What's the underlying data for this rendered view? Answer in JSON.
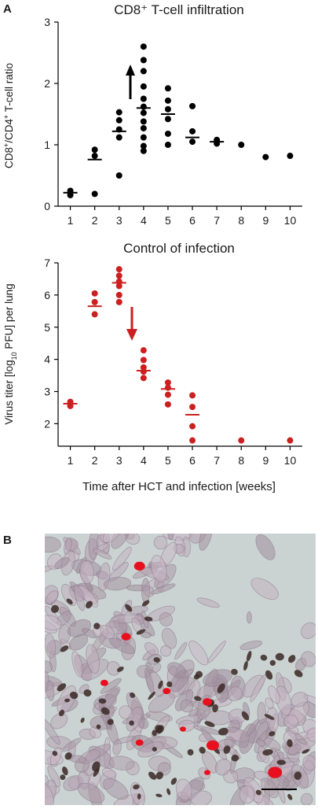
{
  "panel_a_letter": "A",
  "panel_b_letter": "B",
  "chart_data": [
    {
      "type": "scatter",
      "title": "CD8⁺ T-cell infiltration",
      "ylabel_parts": [
        "CD8",
        "+",
        "/CD4",
        "+",
        " T-cell ratio"
      ],
      "xlabel": "",
      "x_ticks": [
        1,
        2,
        3,
        4,
        5,
        6,
        7,
        8,
        9,
        10
      ],
      "y_ticks": [
        0,
        1,
        2,
        3
      ],
      "xlim": [
        0.5,
        10.5
      ],
      "ylim": [
        0,
        3
      ],
      "color": "#000000",
      "annotation": "arrow up at week 4",
      "points": [
        {
          "x": 1,
          "y": 0.25
        },
        {
          "x": 1,
          "y": 0.18
        },
        {
          "x": 2,
          "y": 0.92
        },
        {
          "x": 2,
          "y": 0.82
        },
        {
          "x": 2,
          "y": 0.2
        },
        {
          "x": 3,
          "y": 1.53
        },
        {
          "x": 3,
          "y": 1.4
        },
        {
          "x": 3,
          "y": 1.25
        },
        {
          "x": 3,
          "y": 1.12
        },
        {
          "x": 3,
          "y": 0.5
        },
        {
          "x": 4,
          "y": 2.6
        },
        {
          "x": 4,
          "y": 2.38
        },
        {
          "x": 4,
          "y": 2.2
        },
        {
          "x": 4,
          "y": 1.95
        },
        {
          "x": 4,
          "y": 1.75
        },
        {
          "x": 4,
          "y": 1.62
        },
        {
          "x": 4,
          "y": 1.52
        },
        {
          "x": 4,
          "y": 1.38
        },
        {
          "x": 4,
          "y": 1.27
        },
        {
          "x": 4,
          "y": 1.12
        },
        {
          "x": 4,
          "y": 0.98
        },
        {
          "x": 4,
          "y": 0.9
        },
        {
          "x": 5,
          "y": 1.92
        },
        {
          "x": 5,
          "y": 1.72
        },
        {
          "x": 5,
          "y": 1.58
        },
        {
          "x": 5,
          "y": 1.42
        },
        {
          "x": 5,
          "y": 1.18
        },
        {
          "x": 5,
          "y": 1.0
        },
        {
          "x": 6,
          "y": 1.63
        },
        {
          "x": 6,
          "y": 1.22
        },
        {
          "x": 6,
          "y": 1.05
        },
        {
          "x": 7,
          "y": 1.08
        },
        {
          "x": 7,
          "y": 1.02
        },
        {
          "x": 8,
          "y": 1.0
        },
        {
          "x": 9,
          "y": 0.8
        },
        {
          "x": 10,
          "y": 0.82
        }
      ],
      "medians": [
        {
          "x": 1,
          "y": 0.22
        },
        {
          "x": 2,
          "y": 0.76
        },
        {
          "x": 3,
          "y": 1.22
        },
        {
          "x": 4,
          "y": 1.6
        },
        {
          "x": 5,
          "y": 1.5
        },
        {
          "x": 6,
          "y": 1.12
        },
        {
          "x": 7,
          "y": 1.05
        }
      ]
    },
    {
      "type": "scatter",
      "title": "Control of infection",
      "ylabel_parts": [
        "Virus titer [log",
        "10",
        " PFU] per lung"
      ],
      "xlabel": "Time after HCT and infection [weeks]",
      "x_ticks": [
        1,
        2,
        3,
        4,
        5,
        6,
        7,
        8,
        9,
        10
      ],
      "y_ticks": [
        2,
        3,
        4,
        5,
        6,
        7
      ],
      "xlim": [
        0.5,
        10.5
      ],
      "ylim": [
        1.3,
        7
      ],
      "color": "#cc1f1f",
      "annotation": "arrow down at week 3.5",
      "points": [
        {
          "x": 1,
          "y": 2.68
        },
        {
          "x": 1,
          "y": 2.55
        },
        {
          "x": 2,
          "y": 6.05
        },
        {
          "x": 2,
          "y": 5.78
        },
        {
          "x": 2,
          "y": 5.4
        },
        {
          "x": 3,
          "y": 6.8
        },
        {
          "x": 3,
          "y": 6.6
        },
        {
          "x": 3,
          "y": 6.42
        },
        {
          "x": 3,
          "y": 6.28
        },
        {
          "x": 3,
          "y": 6.0
        },
        {
          "x": 3,
          "y": 5.78
        },
        {
          "x": 4,
          "y": 4.28
        },
        {
          "x": 4,
          "y": 3.98
        },
        {
          "x": 4,
          "y": 3.75
        },
        {
          "x": 4,
          "y": 3.62
        },
        {
          "x": 4,
          "y": 3.42
        },
        {
          "x": 5,
          "y": 3.28
        },
        {
          "x": 5,
          "y": 3.12
        },
        {
          "x": 5,
          "y": 2.9
        },
        {
          "x": 5,
          "y": 2.6
        },
        {
          "x": 6,
          "y": 2.88
        },
        {
          "x": 6,
          "y": 2.52
        },
        {
          "x": 6,
          "y": 1.92
        },
        {
          "x": 6,
          "y": 1.48
        },
        {
          "x": 8,
          "y": 1.48
        },
        {
          "x": 10,
          "y": 1.48
        }
      ],
      "medians": [
        {
          "x": 1,
          "y": 2.62
        },
        {
          "x": 2,
          "y": 5.65
        },
        {
          "x": 3,
          "y": 6.38
        },
        {
          "x": 4,
          "y": 3.65
        },
        {
          "x": 5,
          "y": 3.08
        },
        {
          "x": 6,
          "y": 2.28
        }
      ]
    }
  ],
  "micrograph": {
    "description_colors": {
      "background": "#cfd6d4",
      "tissue": "#a695a4",
      "brown_cells": "#3b2a26",
      "red_cells": "#e8101e"
    }
  }
}
